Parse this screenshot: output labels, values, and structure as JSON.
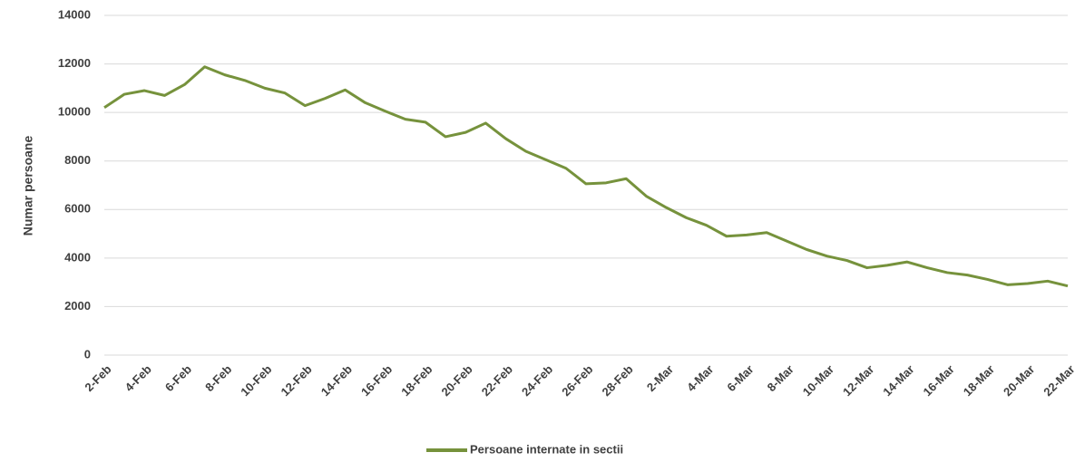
{
  "chart_data": {
    "type": "line",
    "y_label": "Numar persoane",
    "categories": [
      "2-Feb",
      null,
      "4-Feb",
      null,
      "6-Feb",
      null,
      "8-Feb",
      null,
      "10-Feb",
      null,
      "12-Feb",
      null,
      "14-Feb",
      null,
      "16-Feb",
      null,
      "18-Feb",
      null,
      "20-Feb",
      null,
      "22-Feb",
      null,
      "24-Feb",
      null,
      "26-Feb",
      null,
      "28-Feb",
      null,
      "2-Mar",
      null,
      "4-Mar",
      null,
      "6-Mar",
      null,
      "8-Mar",
      null,
      "10-Mar",
      null,
      "12-Mar",
      null,
      "14-Mar",
      null,
      "16-Mar",
      null,
      "18-Mar",
      null,
      "20-Mar",
      null,
      "22-Mar"
    ],
    "series": [
      {
        "name": "Persoane internate in sectii",
        "color": "#76923c",
        "values": [
          10200,
          10750,
          10900,
          10700,
          11150,
          11880,
          11550,
          11320,
          11000,
          10800,
          10280,
          10580,
          10930,
          10400,
          10050,
          9720,
          9600,
          9000,
          9180,
          9560,
          8920,
          8400,
          8050,
          7700,
          7060,
          7100,
          7270,
          6550,
          6080,
          5660,
          5350,
          4900,
          4950,
          5050,
          4700,
          4350,
          4080,
          3900,
          3600,
          3700,
          3840,
          3600,
          3400,
          3300,
          3120,
          2900,
          2950,
          3050,
          2850
        ]
      }
    ],
    "ylim": [
      0,
      14000
    ],
    "yticks": [
      0,
      2000,
      4000,
      6000,
      8000,
      10000,
      12000,
      14000
    ],
    "grid": true,
    "legend": "bottom"
  }
}
